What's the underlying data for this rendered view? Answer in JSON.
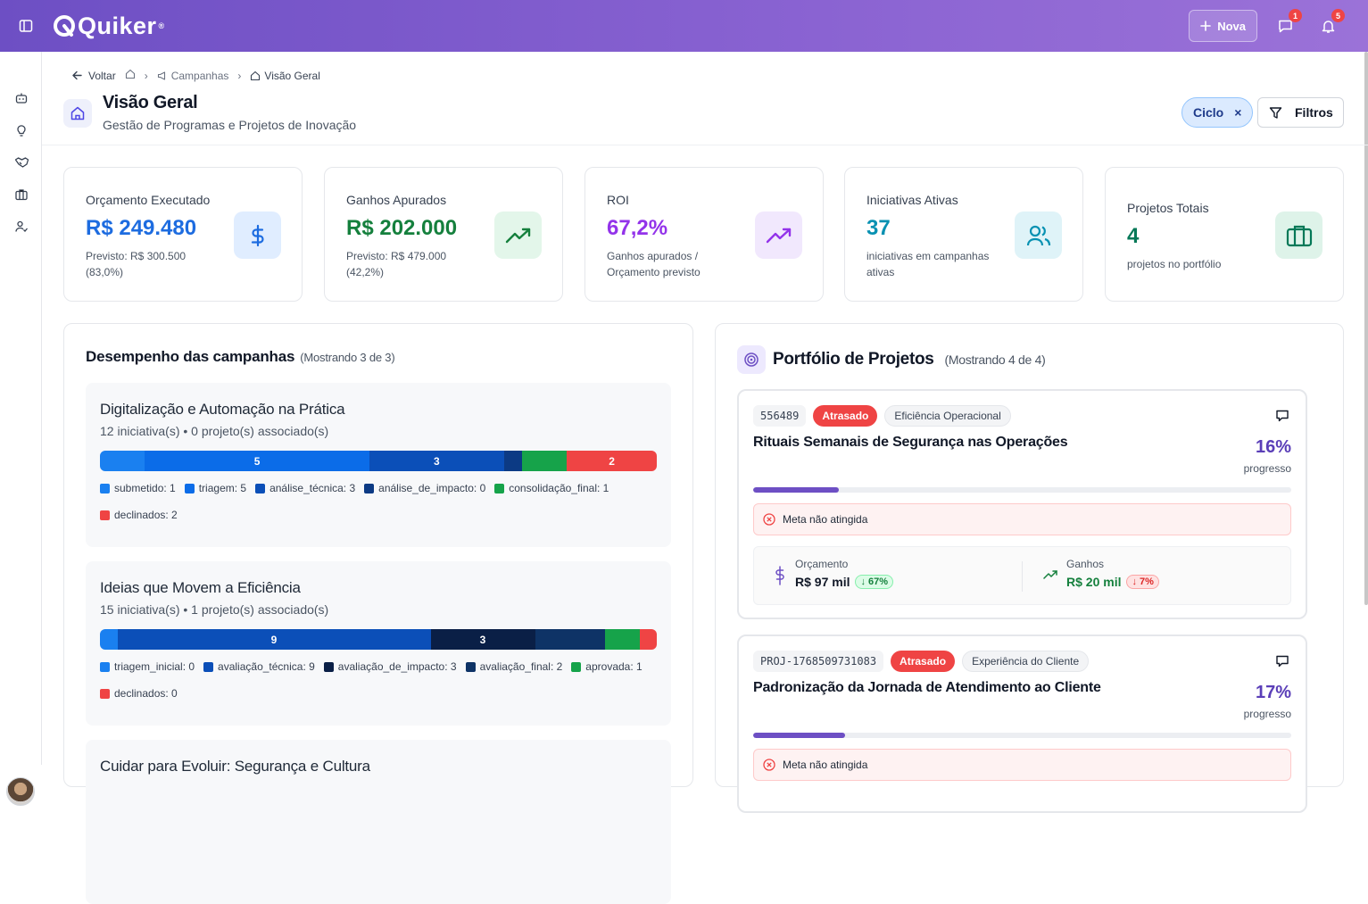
{
  "app": {
    "brand": "Quiker",
    "nova_label": "Nova",
    "chat_badge": "1",
    "bell_badge": "5"
  },
  "breadcrumb": {
    "back": "Voltar",
    "campaigns": "Campanhas",
    "current": "Visão Geral"
  },
  "page": {
    "title": "Visão Geral",
    "subtitle": "Gestão de Programas e Projetos de Inovação"
  },
  "filters": {
    "chip": "Ciclo",
    "button": "Filtros"
  },
  "kpis": [
    {
      "label": "Orçamento Executado",
      "value": "R$ 249.480",
      "sub": "Previsto: R$ 300.500 (83,0%)",
      "icon": "dollar-icon",
      "color": "#1d6ce0"
    },
    {
      "label": "Ganhos Apurados",
      "value": "R$ 202.000",
      "sub": "Previsto: R$ 479.000 (42,2%)",
      "icon": "trending-up-icon",
      "color": "#15803d"
    },
    {
      "label": "ROI",
      "value": "67,2%",
      "sub": "Ganhos apurados / Orçamento previsto",
      "icon": "trending-up-icon",
      "color": "#9333ea"
    },
    {
      "label": "Iniciativas Ativas",
      "value": "37",
      "sub": "iniciativas em campanhas ativas",
      "icon": "users-icon",
      "color": "#0891b2"
    },
    {
      "label": "Projetos Totais",
      "value": "4",
      "sub": "projetos no portfólio",
      "icon": "briefcase-icon",
      "color": "#047857"
    }
  ],
  "campaigns_panel": {
    "title": "Desempenho das campanhas",
    "count": "(Mostrando 3 de 3)",
    "items": [
      {
        "name": "Digitalização e Automação na Prática",
        "summary": "12 iniciativa(s) • 0 projeto(s) associado(s)",
        "segments": [
          {
            "value": 1,
            "label": "",
            "color": "#1a80f0"
          },
          {
            "value": 5,
            "label": "5",
            "color": "#0b6ce8"
          },
          {
            "value": 3,
            "label": "3",
            "color": "#0b4fb8"
          },
          {
            "value": 0.4,
            "label": "",
            "color": "#0c3a84"
          },
          {
            "value": 1,
            "label": "",
            "color": "#16a34a"
          },
          {
            "value": 2,
            "label": "2",
            "color": "#ef4444"
          }
        ],
        "legend": [
          {
            "text": "submetido: 1",
            "color": "#1a80f0"
          },
          {
            "text": "triagem: 5",
            "color": "#0b6ce8"
          },
          {
            "text": "análise_técnica: 3",
            "color": "#0b4fb8"
          },
          {
            "text": "análise_de_impacto: 0",
            "color": "#0c3a84"
          },
          {
            "text": "consolidação_final: 1",
            "color": "#16a34a"
          },
          {
            "text": "declinados: 2",
            "color": "#ef4444"
          }
        ]
      },
      {
        "name": "Ideias que Movem a Eficiência",
        "summary": "15 iniciativa(s) • 1 projeto(s) associado(s)",
        "segments": [
          {
            "value": 0.5,
            "label": "",
            "color": "#1a80f0"
          },
          {
            "value": 9,
            "label": "9",
            "color": "#0b4fb8"
          },
          {
            "value": 3,
            "label": "3",
            "color": "#0a1f46"
          },
          {
            "value": 2,
            "label": "",
            "color": "#0e3366"
          },
          {
            "value": 1,
            "label": "",
            "color": "#16a34a"
          },
          {
            "value": 0.5,
            "label": "",
            "color": "#ef4444"
          }
        ],
        "legend": [
          {
            "text": "triagem_inicial: 0",
            "color": "#1a80f0"
          },
          {
            "text": "avaliação_técnica: 9",
            "color": "#0b4fb8"
          },
          {
            "text": "avaliação_de_impacto: 3",
            "color": "#0a1f46"
          },
          {
            "text": "avaliação_final: 2",
            "color": "#0e3366"
          },
          {
            "text": "aprovada: 1",
            "color": "#16a34a"
          },
          {
            "text": "declinados: 0",
            "color": "#ef4444"
          }
        ]
      },
      {
        "name": "Cuidar para Evoluir: Segurança e Cultura",
        "summary": "",
        "segments": [],
        "legend": []
      }
    ]
  },
  "portfolio": {
    "title": "Portfólio de Projetos",
    "count": "(Mostrando 4 de 4)",
    "projects": [
      {
        "code": "556489",
        "status": "Atrasado",
        "category": "Eficiência Operacional",
        "name": "Rituais Semanais de Segurança nas Operações",
        "progress": "16%",
        "progress_value": 0.16,
        "progress_label": "progresso",
        "meta": "Meta não atingida",
        "budget_label": "Orçamento",
        "budget_value": "R$ 97 mil",
        "budget_pct": "↓ 67%",
        "gains_label": "Ganhos",
        "gains_value": "R$ 20 mil",
        "gains_pct": "↓ 7%"
      },
      {
        "code": "PROJ-1768509731083",
        "status": "Atrasado",
        "category": "Experiência do Cliente",
        "name": "Padronização da Jornada de Atendimento ao Cliente",
        "progress": "17%",
        "progress_value": 0.17,
        "progress_label": "progresso",
        "meta": "Meta não atingida"
      }
    ]
  }
}
